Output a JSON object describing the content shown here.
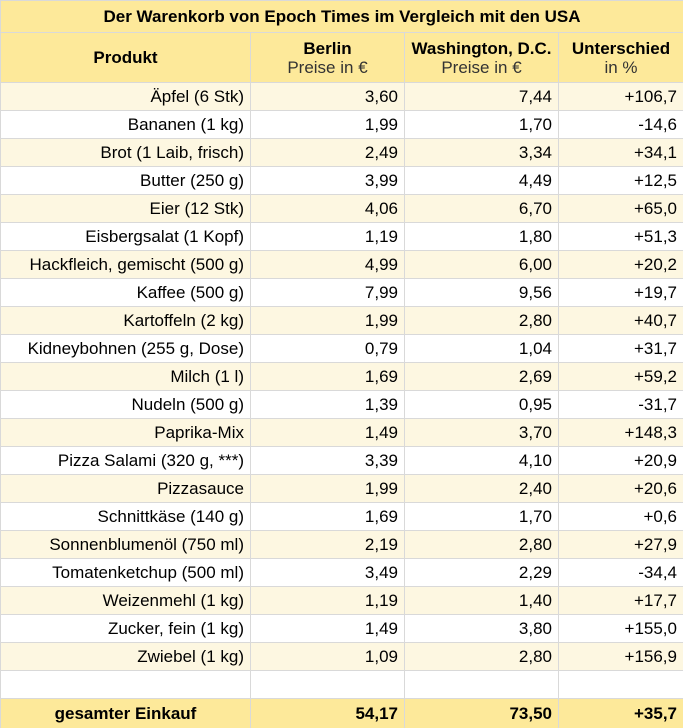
{
  "title": "Der Warenkorb von Epoch Times im Vergleich mit den USA",
  "headers": {
    "product": "Produkt",
    "berlin": "Berlin",
    "berlin_sub": "Preise in €",
    "washington": "Washington, D.C.",
    "washington_sub": "Preise in €",
    "diff": "Unterschied",
    "diff_sub": "in %"
  },
  "rows": [
    {
      "product": "Äpfel (6 Stk)",
      "berlin": "3,60",
      "washington": "7,44",
      "diff": "+106,7"
    },
    {
      "product": "Bananen (1 kg)",
      "berlin": "1,99",
      "washington": "1,70",
      "diff": "-14,6"
    },
    {
      "product": "Brot (1 Laib, frisch)",
      "berlin": "2,49",
      "washington": "3,34",
      "diff": "+34,1"
    },
    {
      "product": "Butter (250 g)",
      "berlin": "3,99",
      "washington": "4,49",
      "diff": "+12,5"
    },
    {
      "product": "Eier (12 Stk)",
      "berlin": "4,06",
      "washington": "6,70",
      "diff": "+65,0"
    },
    {
      "product": "Eisbergsalat (1 Kopf)",
      "berlin": "1,19",
      "washington": "1,80",
      "diff": "+51,3"
    },
    {
      "product": "Hackfleich, gemischt (500 g)",
      "berlin": "4,99",
      "washington": "6,00",
      "diff": "+20,2"
    },
    {
      "product": "Kaffee (500 g)",
      "berlin": "7,99",
      "washington": "9,56",
      "diff": "+19,7"
    },
    {
      "product": "Kartoffeln (2 kg)",
      "berlin": "1,99",
      "washington": "2,80",
      "diff": "+40,7"
    },
    {
      "product": "Kidneybohnen (255 g, Dose)",
      "berlin": "0,79",
      "washington": "1,04",
      "diff": "+31,7"
    },
    {
      "product": "Milch (1 l)",
      "berlin": "1,69",
      "washington": "2,69",
      "diff": "+59,2"
    },
    {
      "product": "Nudeln (500 g)",
      "berlin": "1,39",
      "washington": "0,95",
      "diff": "-31,7"
    },
    {
      "product": "Paprika-Mix",
      "berlin": "1,49",
      "washington": "3,70",
      "diff": "+148,3"
    },
    {
      "product": "Pizza Salami (320 g, ***)",
      "berlin": "3,39",
      "washington": "4,10",
      "diff": "+20,9"
    },
    {
      "product": "Pizzasauce",
      "berlin": "1,99",
      "washington": "2,40",
      "diff": "+20,6"
    },
    {
      "product": "Schnittkäse (140 g)",
      "berlin": "1,69",
      "washington": "1,70",
      "diff": "+0,6"
    },
    {
      "product": "Sonnenblumenöl (750 ml)",
      "berlin": "2,19",
      "washington": "2,80",
      "diff": "+27,9"
    },
    {
      "product": "Tomatenketchup (500 ml)",
      "berlin": "3,49",
      "washington": "2,29",
      "diff": "-34,4"
    },
    {
      "product": "Weizenmehl (1 kg)",
      "berlin": "1,19",
      "washington": "1,40",
      "diff": "+17,7"
    },
    {
      "product": "Zucker, fein (1 kg)",
      "berlin": "1,49",
      "washington": "3,80",
      "diff": "+155,0"
    },
    {
      "product": "Zwiebel (1 kg)",
      "berlin": "1,09",
      "washington": "2,80",
      "diff": "+156,9"
    }
  ],
  "total": {
    "label": "gesamter Einkauf",
    "berlin": "54,17",
    "washington": "73,50",
    "diff": "+35,7"
  }
}
